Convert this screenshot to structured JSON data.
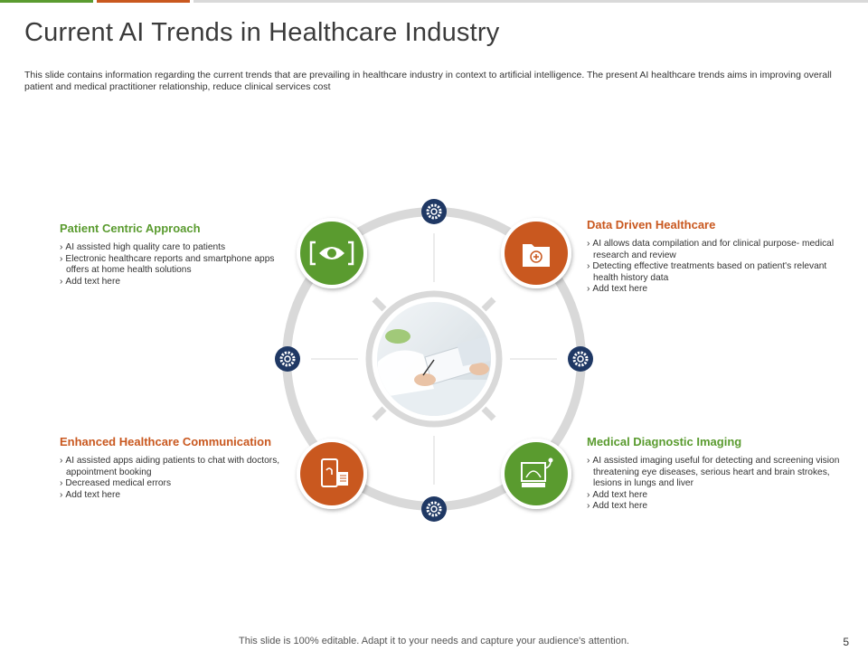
{
  "colors": {
    "green": "#5a9b2f",
    "orange": "#c9581f",
    "navy": "#1f3864",
    "ring": "#d9d9d9"
  },
  "slide": {
    "title": "Current AI Trends in Healthcare Industry",
    "description": "This slide contains information regarding the current trends that are prevailing in healthcare industry in context to artificial intelligence. The present AI healthcare trends aims in improving overall patient and medical practitioner relationship, reduce clinical services cost"
  },
  "blocks": {
    "patient": {
      "heading": "Patient Centric Approach",
      "icon": "eye-scan-icon",
      "items": [
        "AI assisted high quality care to patients",
        "Electronic healthcare reports and smartphone apps offers at home health solutions",
        "Add text here"
      ]
    },
    "data": {
      "heading": "Data Driven Healthcare",
      "icon": "medical-folder-icon",
      "items": [
        "AI allows data compilation and for clinical purpose- medical research and review",
        "Detecting effective treatments based on patient's relevant health history data",
        "Add text here"
      ]
    },
    "communication": {
      "heading": "Enhanced Healthcare Communication",
      "icon": "phone-report-icon",
      "items": [
        "AI assisted apps aiding patients to chat with doctors, appointment booking",
        "Decreased medical errors",
        "Add text here"
      ]
    },
    "imaging": {
      "heading": "Medical Diagnostic Imaging",
      "icon": "ultrasound-monitor-icon",
      "items": [
        "AI assisted imaging useful for detecting and screening vision threatening eye diseases, serious heart and brain strokes, lesions in lungs and liver",
        "Add text here",
        "Add text here"
      ]
    }
  },
  "center_image": "doctor-writing-photo",
  "gear_icon": "gear-icon",
  "footer": {
    "text": "This slide is 100% editable. Adapt it to your needs and capture your audience's attention.",
    "page_number": "5"
  }
}
